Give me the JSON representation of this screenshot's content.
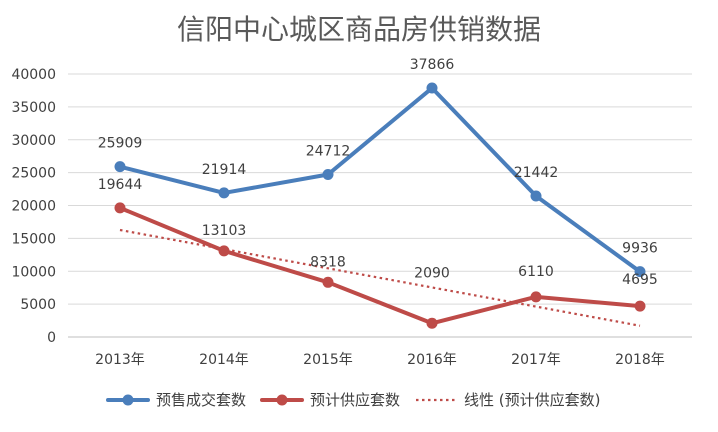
{
  "chart_data": {
    "type": "line",
    "title": "信阳中心城区商品房供销数据",
    "categories": [
      "2013年",
      "2014年",
      "2015年",
      "2016年",
      "2017年",
      "2018年"
    ],
    "series": [
      {
        "name": "预售成交套数",
        "values": [
          25909,
          21914,
          24712,
          37866,
          21442,
          9936
        ],
        "color": "#4a7ebb"
      },
      {
        "name": "预计供应套数",
        "values": [
          19644,
          13103,
          8318,
          2090,
          6110,
          4695
        ],
        "color": "#be4b48"
      }
    ],
    "trendline": {
      "name": "线性 (预计供应套数)",
      "of_series": "预计供应套数",
      "type": "linear",
      "color": "#be4b48",
      "style": "dotted"
    },
    "ylim": [
      0,
      40000
    ],
    "yticks": [
      0,
      5000,
      10000,
      15000,
      20000,
      25000,
      30000,
      35000,
      40000
    ],
    "grid": true,
    "legend_position": "bottom"
  }
}
